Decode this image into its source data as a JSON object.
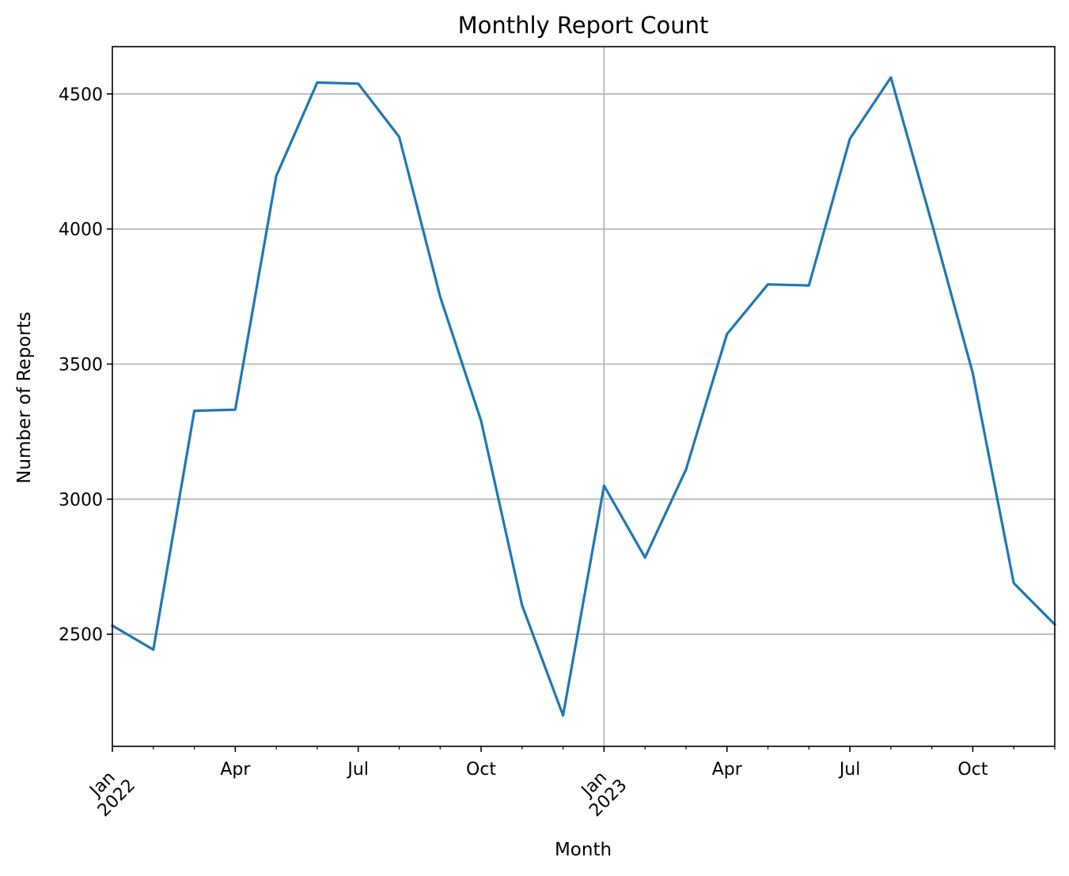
{
  "chart_data": {
    "type": "line",
    "title": "Monthly Report Count",
    "xlabel": "Month",
    "ylabel": "Number of Reports",
    "x": [
      "2022-01",
      "2022-02",
      "2022-03",
      "2022-04",
      "2022-05",
      "2022-06",
      "2022-07",
      "2022-08",
      "2022-09",
      "2022-10",
      "2022-11",
      "2022-12",
      "2023-01",
      "2023-02",
      "2023-03",
      "2023-04",
      "2023-05",
      "2023-06",
      "2023-07",
      "2023-08",
      "2023-09",
      "2023-10",
      "2023-11",
      "2023-12"
    ],
    "series": [
      {
        "values": [
          2532,
          2443,
          3327,
          3331,
          4196,
          4542,
          4538,
          4341,
          3749,
          3290,
          2607,
          2199,
          3050,
          2784,
          3110,
          3611,
          3795,
          3791,
          4334,
          4561,
          4021,
          3466,
          2689,
          2536
        ],
        "color": "#1f77b4"
      }
    ],
    "ylim": [
      2085,
      4675
    ],
    "yticks": [
      2500,
      3000,
      3500,
      4000,
      4500
    ],
    "xticks": [
      {
        "x": "2022-01",
        "label": "Jan",
        "sublabel": "2022"
      },
      {
        "x": "2022-04",
        "label": "Apr"
      },
      {
        "x": "2022-07",
        "label": "Jul"
      },
      {
        "x": "2022-10",
        "label": "Oct"
      },
      {
        "x": "2023-01",
        "label": "Jan",
        "sublabel": "2023"
      },
      {
        "x": "2023-04",
        "label": "Apr"
      },
      {
        "x": "2023-07",
        "label": "Jul"
      },
      {
        "x": "2023-10",
        "label": "Oct"
      }
    ],
    "xgrid": [
      "2023-01"
    ],
    "grid": true
  }
}
